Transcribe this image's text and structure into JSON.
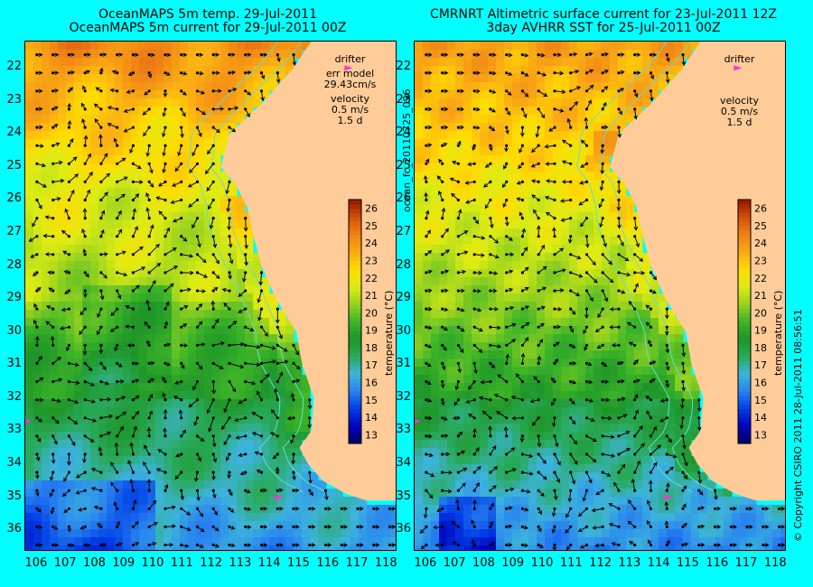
{
  "left": {
    "title_line1": "OceanMAPS 5m temp. 29-Jul-2011",
    "title_line2": "OceanMAPS 5m current for 29-Jul-2011 00Z",
    "legend": {
      "drifter": "drifter",
      "model_line1": "err model",
      "model_line2": "29.43cm/s",
      "velocity": "velocity",
      "speed": "0.5 m/s",
      "days": "1.5 d"
    }
  },
  "right": {
    "title_line1": "CMRNRT Altimetric surface current for 23-Jul-2011 12Z",
    "title_line2": "3day AVHRR SST for 25-Jul-2011 00Z",
    "legend": {
      "drifter": "drifter",
      "velocity": "velocity",
      "speed": "0.5 m/s",
      "days": "1.5 d"
    }
  },
  "middle_label": "ocean_fc_20110725_096",
  "copyright_label": "© Copyright CSIRO 2011   28-Jul-2011 08:56:51",
  "colors": {
    "background": "#00ffff",
    "land": "#ffcc99",
    "bathymetry": "#66ddcc",
    "vector": "#000000",
    "drifter": "#ff33cc"
  },
  "chart_data": {
    "type": "heatmap",
    "x_ticks": [
      "106",
      "107",
      "108",
      "109",
      "110",
      "111",
      "112",
      "113",
      "114",
      "115",
      "116",
      "117",
      "118"
    ],
    "y_ticks": [
      "22",
      "23",
      "24",
      "25",
      "26",
      "27",
      "28",
      "29",
      "30",
      "31",
      "32",
      "33",
      "34",
      "35",
      "36"
    ],
    "xlim": [
      105.6,
      118.3
    ],
    "ylim": [
      36.6,
      21.2
    ],
    "colorbar": {
      "label": "temperature (°C)",
      "ticks": [
        "26",
        "25",
        "24",
        "23",
        "22",
        "21",
        "20",
        "19",
        "18",
        "17",
        "16",
        "15",
        "14",
        "13"
      ],
      "range": [
        12.5,
        26.5
      ]
    }
  }
}
